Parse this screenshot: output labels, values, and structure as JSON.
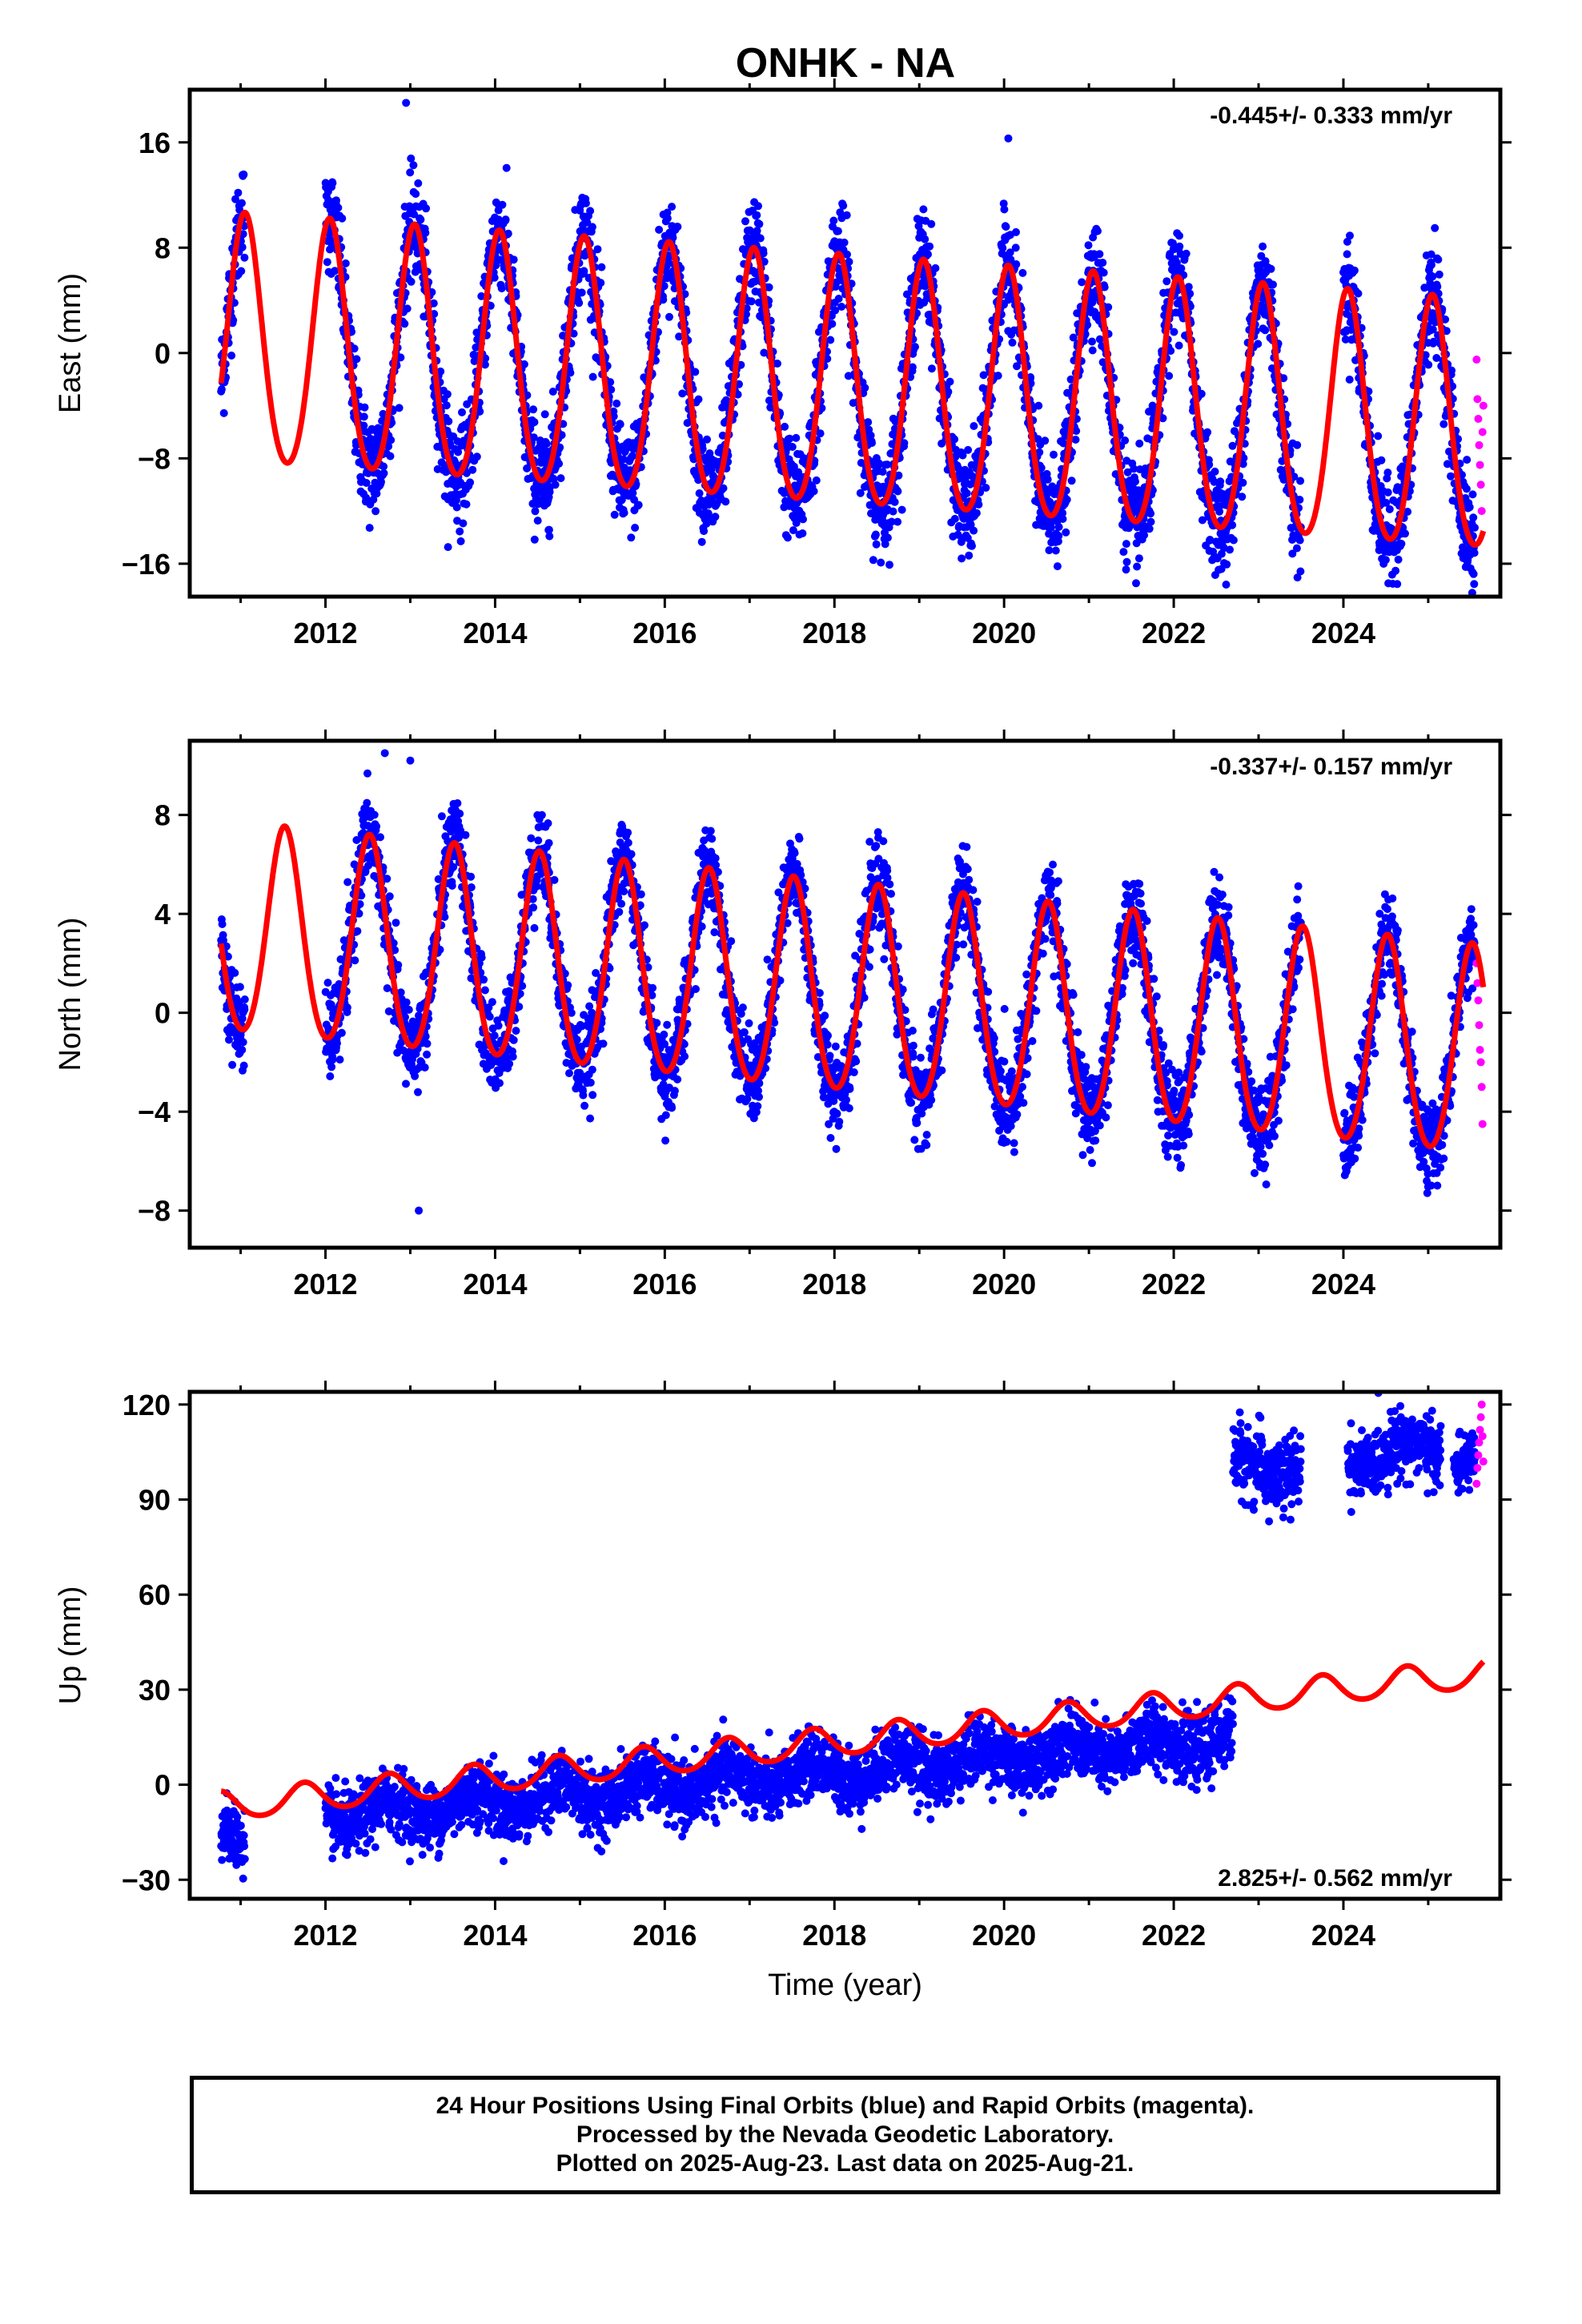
{
  "title": "ONHK - NA",
  "colors": {
    "final_orbits": "#0000ff",
    "rapid_orbits": "#ff00ff",
    "model_fit": "#ff0000",
    "frame": "#000000"
  },
  "footer": {
    "line1": "24 Hour Positions Using Final Orbits (blue) and Rapid Orbits (magenta).",
    "line2": "Processed by the Nevada Geodetic Laboratory.",
    "line3": "Plotted on 2025-Aug-23. Last data on 2025-Aug-21."
  },
  "chart_data": [
    {
      "type": "scatter",
      "name": "east",
      "ylabel": "East (mm)",
      "xlabel": "",
      "rate_label": "-0.445+/- 0.333 mm/yr",
      "rate_position": "top-right",
      "xlim": [
        2010.4,
        2025.85
      ],
      "ylim": [
        -18.5,
        20.0
      ],
      "x_ticks": [
        2012,
        2014,
        2016,
        2018,
        2020,
        2022,
        2024
      ],
      "y_ticks": [
        -16,
        -8,
        0,
        8,
        16
      ],
      "final_orbits": {
        "x_range": [
          2010.77,
          2025.55
        ],
        "gaps": [
          [
            2011.05,
            2012.0
          ],
          [
            2023.5,
            2024.0
          ]
        ],
        "trend_start": 0.4,
        "slope": -0.445,
        "annual_amp": 9.4,
        "annual_phase_peak": 0.05,
        "semiannual_amp": 1.0,
        "noise": 2.0,
        "outliers": [
          [
            2012.95,
            19.0
          ],
          [
            2020.05,
            16.3
          ]
        ]
      },
      "rapid_orbits": {
        "x": [
          2025.57,
          2025.58,
          2025.59,
          2025.6,
          2025.61,
          2025.62,
          2025.63,
          2025.64,
          2025.65
        ],
        "y": [
          -0.5,
          -3.5,
          -5.0,
          -7.0,
          -8.5,
          -10.0,
          -12.0,
          -6.0,
          -4.0
        ]
      },
      "model": {
        "x_range": [
          2010.77,
          2025.65
        ],
        "trend_start": 0.4,
        "slope": -0.445,
        "annual_amp": 9.4,
        "annual_phase_peak": 0.05,
        "semiannual_amp": 1.0
      }
    },
    {
      "type": "scatter",
      "name": "north",
      "ylabel": "North (mm)",
      "xlabel": "",
      "rate_label": "-0.337+/- 0.157 mm/yr",
      "rate_position": "top-right",
      "xlim": [
        2010.4,
        2025.85
      ],
      "ylim": [
        -9.5,
        11.0
      ],
      "x_ticks": [
        2012,
        2014,
        2016,
        2018,
        2020,
        2022,
        2024
      ],
      "y_ticks": [
        -8,
        -4,
        0,
        4,
        8
      ],
      "final_orbits": {
        "x_range": [
          2010.77,
          2025.55
        ],
        "gaps": [
          [
            2011.05,
            2012.0
          ],
          [
            2023.5,
            2024.0
          ]
        ],
        "trend_start": 3.2,
        "slope": -0.337,
        "annual_amp": 4.2,
        "annual_phase_peak": 0.52,
        "semiannual_amp": 0.4,
        "noise": 0.9,
        "outliers": [
          [
            2012.7,
            10.5
          ],
          [
            2013.0,
            10.2
          ],
          [
            2013.1,
            -8.0
          ]
        ]
      },
      "rapid_orbits": {
        "x": [
          2025.57,
          2025.58,
          2025.59,
          2025.6,
          2025.61,
          2025.62,
          2025.63,
          2025.64
        ],
        "y": [
          2.0,
          1.2,
          0.5,
          -0.5,
          -1.5,
          -2.0,
          -3.0,
          -4.5
        ]
      },
      "model": {
        "x_range": [
          2010.77,
          2025.65
        ],
        "trend_start": 3.2,
        "slope": -0.337,
        "annual_amp": 4.2,
        "annual_phase_peak": 0.52,
        "semiannual_amp": 0.4
      }
    },
    {
      "type": "scatter",
      "name": "up",
      "ylabel": "Up (mm)",
      "xlabel": "Time (year)",
      "rate_label": "2.825+/- 0.562 mm/yr",
      "rate_position": "bottom-right",
      "xlim": [
        2010.4,
        2025.85
      ],
      "ylim": [
        -36.0,
        124.0
      ],
      "x_ticks": [
        2012,
        2014,
        2016,
        2018,
        2020,
        2022,
        2024
      ],
      "y_ticks": [
        -30,
        0,
        30,
        60,
        90,
        120
      ],
      "final_orbits_segments": [
        {
          "x_range": [
            2010.77,
            2011.05
          ],
          "start": -18.0,
          "slope": 2.825,
          "noise": 5.0
        },
        {
          "x_range": [
            2012.0,
            2022.7
          ],
          "start": -10.0,
          "slope": 2.3,
          "noise": 5.0
        },
        {
          "x_range": [
            2022.7,
            2023.5
          ],
          "start": 100.0,
          "slope": 0.0,
          "noise": 6.0
        },
        {
          "x_range": [
            2024.05,
            2025.15
          ],
          "start": 103.0,
          "slope": 3.0,
          "noise": 5.0
        },
        {
          "x_range": [
            2025.3,
            2025.55
          ],
          "start": 103.0,
          "slope": 0.0,
          "noise": 4.0
        }
      ],
      "annual_amp_data": 3.5,
      "rapid_orbits": {
        "x": [
          2025.57,
          2025.58,
          2025.59,
          2025.6,
          2025.61,
          2025.62,
          2025.63,
          2025.64,
          2025.65
        ],
        "y": [
          95,
          100,
          104,
          108,
          112,
          116,
          120,
          110,
          102
        ]
      },
      "model": {
        "x_range": [
          2010.77,
          2025.65
        ],
        "trend_start": -7.0,
        "slope": 2.825,
        "annual_amp": 4.5,
        "annual_phase_peak": 0.75,
        "semiannual_amp": 0.5
      }
    }
  ]
}
